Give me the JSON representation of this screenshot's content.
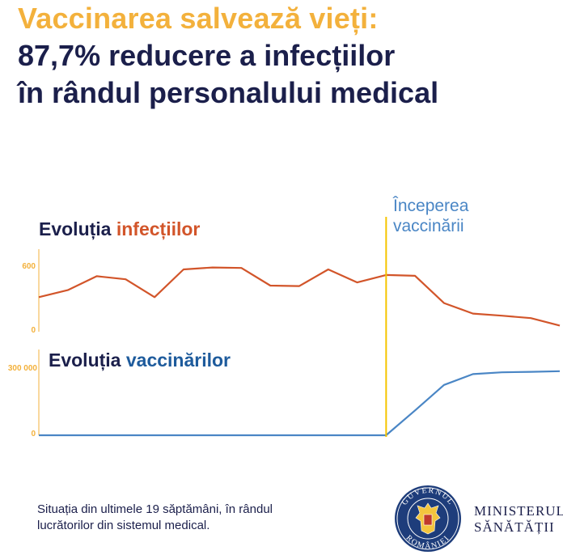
{
  "header": {
    "line1": "Vaccinarea salvează vieți:",
    "line2": "87,7% reducere a infecțiilor",
    "line3": "în rândul personalului medical"
  },
  "annotation": {
    "line1": "Începerea",
    "line2": "vaccinării"
  },
  "footer": {
    "line1": "Situația din ultimele 19 săptămâni, în rândul",
    "line2": "lucrătorilor din sistemul medical."
  },
  "logo": {
    "seal_text_top": "GUVERNUL",
    "seal_text_bottom": "ROMÂNIEI",
    "ministry_line1": "MINISTERUL",
    "ministry_line2": "SĂNĂTĂȚII"
  },
  "colors": {
    "title_yellow": "#F3B13C",
    "navy": "#1B1F4B",
    "infections_line": "#D2552A",
    "vaccinations_line": "#4A86C5",
    "marker_line": "#F5C400"
  },
  "chart_data": [
    {
      "type": "line",
      "title_prefix": "Evoluția ",
      "title_highlight": "infecțiilor",
      "x": [
        1,
        2,
        3,
        4,
        5,
        6,
        7,
        8,
        9,
        10,
        11,
        12,
        13,
        14,
        15,
        16,
        17,
        18,
        19
      ],
      "series": [
        {
          "values": [
            335,
            403,
            538,
            508,
            335,
            604,
            623,
            618,
            447,
            442,
            604,
            478,
            550,
            542,
            278,
            176,
            155,
            132,
            60
          ]
        }
      ],
      "ylim": [
        0,
        800
      ],
      "ytick_labels": [
        "0",
        "600"
      ],
      "ytick_values": [
        0,
        600
      ],
      "marker_x": 13
    },
    {
      "type": "line",
      "title_prefix": "Evoluția ",
      "title_highlight": "vaccinărilor",
      "x": [
        1,
        2,
        3,
        4,
        5,
        6,
        7,
        8,
        9,
        10,
        11,
        12,
        13,
        14,
        15,
        16,
        17,
        18,
        19
      ],
      "series": [
        {
          "values": [
            0,
            0,
            0,
            0,
            0,
            0,
            0,
            0,
            0,
            0,
            0,
            0,
            0,
            110000,
            223000,
            271000,
            279000,
            281000,
            284000
          ]
        }
      ],
      "ylim": [
        0,
        380000
      ],
      "ytick_labels": [
        "0",
        "300 000"
      ],
      "ytick_values": [
        0,
        300000
      ],
      "marker_x": 13
    }
  ]
}
